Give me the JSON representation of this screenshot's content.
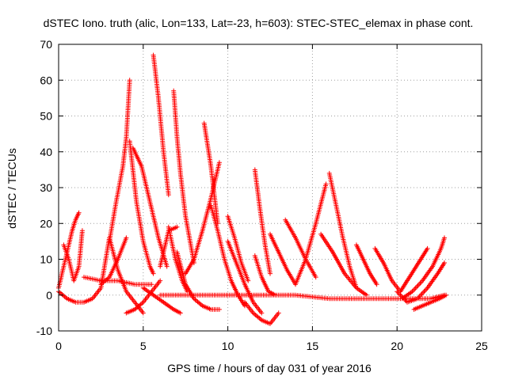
{
  "chart_data": {
    "type": "scatter",
    "title": "dSTEC Iono. truth (alic, Lon=133, Lat=-23, h=603): STEC-STEC_elemax in phase cont.",
    "xlabel": "GPS time / hours of day 031 of year 2016",
    "ylabel": "dSTEC  / TECUs",
    "xlim": [
      0,
      25
    ],
    "ylim": [
      -10,
      70
    ],
    "xticks": [
      0,
      5,
      10,
      15,
      20,
      25
    ],
    "yticks": [
      -10,
      0,
      10,
      20,
      30,
      40,
      50,
      60,
      70
    ],
    "grid": true,
    "marker": "+",
    "color": "#ff0000",
    "series": [
      {
        "x": [
          0.0,
          0.3,
          0.6,
          0.8,
          1.0,
          1.2
        ],
        "y": [
          2,
          8,
          14,
          18,
          21,
          23
        ]
      },
      {
        "x": [
          0.3,
          0.6,
          0.9,
          1.2,
          1.4
        ],
        "y": [
          14,
          10,
          4,
          8,
          18
        ]
      },
      {
        "x": [
          0.0,
          0.5,
          1.0,
          1.5,
          2.0,
          2.5,
          3.0
        ],
        "y": [
          1,
          -1,
          -2,
          -2,
          -1,
          2,
          16
        ]
      },
      {
        "x": [
          2.5,
          3.0,
          3.5,
          4.0
        ],
        "y": [
          3,
          5,
          10,
          16
        ]
      },
      {
        "x": [
          3.0,
          3.4,
          3.8,
          4.0,
          4.2
        ],
        "y": [
          15,
          26,
          36,
          44,
          60
        ]
      },
      {
        "x": [
          4.2,
          4.6,
          5.0,
          5.4,
          5.6
        ],
        "y": [
          43,
          26,
          15,
          8,
          6
        ]
      },
      {
        "x": [
          3.0,
          3.5,
          4.0,
          4.5,
          5.0
        ],
        "y": [
          16,
          7,
          1,
          -2,
          -5
        ]
      },
      {
        "x": [
          4.0,
          4.5,
          5.0,
          5.5,
          6.0
        ],
        "y": [
          -5,
          -4,
          -2,
          1,
          4
        ]
      },
      {
        "x": [
          1.5,
          2.5,
          3.5,
          4.5,
          5.5
        ],
        "y": [
          5,
          4,
          4,
          3,
          3
        ]
      },
      {
        "x": [
          4.4,
          4.9,
          5.4,
          5.9,
          6.4
        ],
        "y": [
          41,
          36,
          26,
          16,
          8
        ]
      },
      {
        "x": [
          5.6,
          5.9,
          6.2,
          6.5
        ],
        "y": [
          67,
          55,
          40,
          28
        ]
      },
      {
        "x": [
          6.5,
          6.9,
          7.3,
          7.6
        ],
        "y": [
          19,
          10,
          4,
          1
        ]
      },
      {
        "x": [
          5.0,
          5.6,
          6.2,
          6.8,
          7.2
        ],
        "y": [
          2,
          0,
          -2,
          -4,
          -5
        ]
      },
      {
        "x": [
          6.0,
          6.5,
          7.0
        ],
        "y": [
          8,
          18,
          19
        ]
      },
      {
        "x": [
          6.8,
          7.0,
          7.2,
          7.5,
          8.0
        ],
        "y": [
          57,
          44,
          34,
          22,
          9
        ]
      },
      {
        "x": [
          7.0,
          7.5,
          8.0,
          8.5,
          9.0,
          9.5
        ],
        "y": [
          12,
          3,
          -1,
          -3,
          -4,
          -4
        ]
      },
      {
        "x": [
          7.5,
          8.0,
          8.5,
          9.0,
          9.5
        ],
        "y": [
          6,
          10,
          18,
          27,
          37
        ]
      },
      {
        "x": [
          8.6,
          8.8,
          9.0,
          9.2,
          9.4
        ],
        "y": [
          48,
          42,
          36,
          28,
          20
        ]
      },
      {
        "x": [
          9.0,
          9.4,
          9.8,
          10.2
        ],
        "y": [
          25,
          18,
          10,
          4
        ]
      },
      {
        "x": [
          9.4,
          9.8,
          10.2,
          10.6,
          11.0
        ],
        "y": [
          18,
          10,
          4,
          0,
          -3
        ]
      },
      {
        "x": [
          10.0,
          10.4,
          10.8,
          11.2
        ],
        "y": [
          22,
          16,
          9,
          4
        ]
      },
      {
        "x": [
          10.0,
          10.5,
          11.0,
          11.5,
          12.0
        ],
        "y": [
          15,
          9,
          3,
          -2,
          -5
        ]
      },
      {
        "x": [
          11.0,
          11.5,
          12.0,
          12.5,
          13.0
        ],
        "y": [
          -2,
          -5,
          -7,
          -8,
          -5
        ]
      },
      {
        "x": [
          11.6,
          11.9,
          12.2,
          12.5
        ],
        "y": [
          35,
          24,
          14,
          6
        ]
      },
      {
        "x": [
          11.6,
          12.0,
          12.4,
          12.8
        ],
        "y": [
          11,
          5,
          1,
          0
        ]
      },
      {
        "x": [
          12.5,
          13.0,
          13.5,
          14.0
        ],
        "y": [
          17,
          12,
          7,
          3
        ]
      },
      {
        "x": [
          13.4,
          14.0,
          14.6,
          15.2
        ],
        "y": [
          21,
          16,
          10,
          5
        ]
      },
      {
        "x": [
          14.0,
          14.6,
          15.2,
          15.8
        ],
        "y": [
          3,
          10,
          20,
          31
        ]
      },
      {
        "x": [
          16.0,
          16.4,
          16.8,
          17.2,
          17.6
        ],
        "y": [
          34,
          25,
          16,
          8,
          2
        ]
      },
      {
        "x": [
          15.5,
          16.2,
          16.9,
          17.6,
          18.2
        ],
        "y": [
          17,
          12,
          6,
          2,
          0
        ]
      },
      {
        "x": [
          17.6,
          18.0,
          18.4,
          18.8
        ],
        "y": [
          14,
          10,
          6,
          3
        ]
      },
      {
        "x": [
          18.7,
          19.2,
          19.7,
          20.2
        ],
        "y": [
          13,
          9,
          4,
          1
        ]
      },
      {
        "x": [
          6.0,
          8.0,
          10.0,
          12.0,
          14.0,
          16.0,
          18.0,
          20.0,
          22.0,
          22.8
        ],
        "y": [
          0,
          0,
          0,
          0,
          0,
          -1,
          -1,
          -1,
          -1,
          0
        ]
      },
      {
        "x": [
          20.0,
          20.6,
          21.2,
          21.8,
          22.4,
          22.8
        ],
        "y": [
          1,
          -2,
          -1,
          2,
          6,
          9
        ]
      },
      {
        "x": [
          20.3,
          20.9,
          21.5,
          22.1,
          22.6,
          22.8
        ],
        "y": [
          -1,
          1,
          4,
          8,
          13,
          16
        ]
      },
      {
        "x": [
          20.2,
          20.6,
          21.0,
          21.4,
          21.8
        ],
        "y": [
          1,
          4,
          7,
          10,
          13
        ]
      },
      {
        "x": [
          21.0,
          21.5,
          22.0,
          22.5,
          22.9
        ],
        "y": [
          -4,
          -3,
          -2,
          -1,
          0
        ]
      }
    ]
  }
}
